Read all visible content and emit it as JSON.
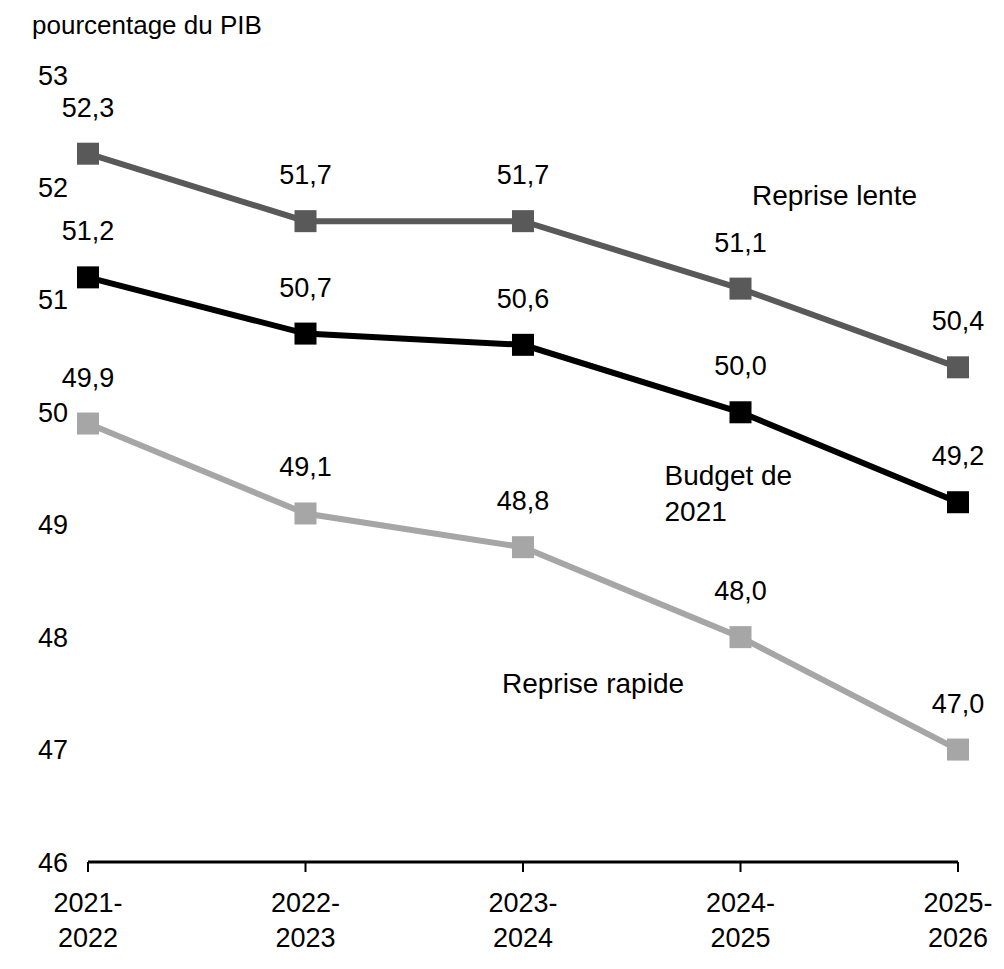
{
  "chart_data": {
    "type": "line",
    "y_label": "pourcentage du PIB",
    "categories": [
      "2021-2022",
      "2022-2023",
      "2023-2024",
      "2024-2025",
      "2025-2026"
    ],
    "series": [
      {
        "name": "Reprise lente",
        "color": "#595959",
        "values": [
          52.3,
          51.7,
          51.7,
          51.1,
          50.4
        ],
        "value_labels": [
          "52,3",
          "51,7",
          "51,7",
          "51,1",
          "50,4"
        ]
      },
      {
        "name": "Budget de 2021",
        "color": "#000000",
        "values": [
          51.2,
          50.7,
          50.6,
          50.0,
          49.2
        ],
        "value_labels": [
          "51,2",
          "50,7",
          "50,6",
          "50,0",
          "49,2"
        ]
      },
      {
        "name": "Reprise rapide",
        "color": "#a6a6a6",
        "values": [
          49.9,
          49.1,
          48.8,
          48.0,
          47.0
        ],
        "value_labels": [
          "49,9",
          "49,1",
          "48,8",
          "48,0",
          "47,0"
        ]
      }
    ],
    "ylim": [
      46,
      53
    ],
    "yticks": [
      46,
      47,
      48,
      49,
      50,
      51,
      52,
      53
    ],
    "grid": false,
    "data_labels": true,
    "marker": "square"
  }
}
